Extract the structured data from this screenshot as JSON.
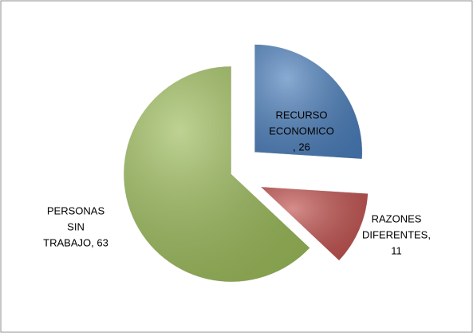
{
  "chart_data": {
    "type": "pie",
    "categories": [
      "RECURSO ECONOMICO",
      "RAZONES DIFERENTES",
      "PERSONAS SIN TRABAJO"
    ],
    "values": [
      26,
      11,
      63
    ],
    "colors": [
      "#4a7ebb",
      "#c0504d",
      "#9bbb59"
    ],
    "data_labels": [
      [
        "RECURSO",
        "ECONOMICO",
        ", 26"
      ],
      [
        "RAZONES",
        "DIFERENTES,",
        "11"
      ],
      [
        "PERSONAS",
        "SIN",
        "TRABAJO, 63"
      ]
    ],
    "exploded": true
  }
}
